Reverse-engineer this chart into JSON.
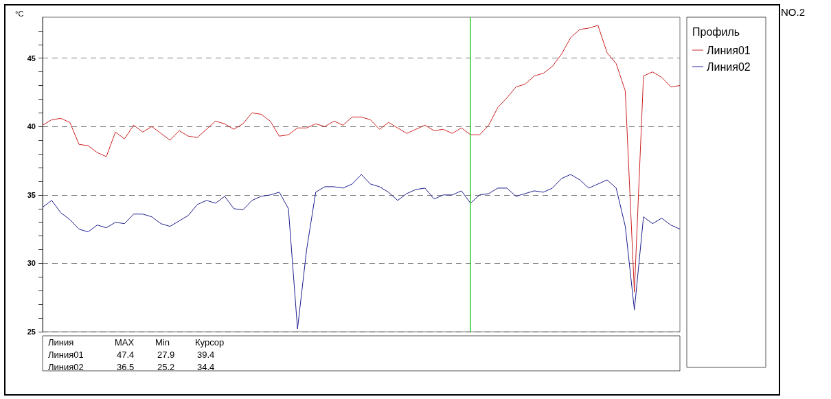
{
  "chart_data": {
    "type": "line",
    "ylabel": "°C",
    "legend_title": "Профиль",
    "legend": "right",
    "marker": "none",
    "line_style": "solid",
    "grid": "y",
    "tick_labels": "y",
    "categories": [
      null,
      null,
      null,
      null,
      null,
      null,
      null,
      null,
      null,
      null,
      null,
      null,
      null,
      null,
      null,
      null,
      null,
      null,
      null,
      null,
      null,
      null,
      null,
      null,
      null,
      null,
      null,
      null,
      null,
      null,
      null,
      null,
      null,
      null,
      null,
      null,
      null,
      null,
      null,
      null,
      null,
      null,
      null,
      null,
      null,
      null,
      null,
      null,
      null,
      null,
      null,
      null,
      null,
      null,
      null,
      null,
      null,
      null,
      null,
      null,
      null,
      null,
      null,
      null,
      null,
      null,
      null,
      null,
      null,
      null,
      null
    ],
    "ylim": [
      25,
      48
    ],
    "yticks": [
      25,
      {
        "value": 26,
        "label": null
      },
      {
        "value": 27,
        "label": null
      },
      {
        "value": 28,
        "label": null
      },
      {
        "value": 29,
        "label": null
      },
      30,
      {
        "value": 31,
        "label": null
      },
      {
        "value": 32,
        "label": null
      },
      {
        "value": 33,
        "label": null
      },
      {
        "value": 34,
        "label": null
      },
      35,
      {
        "value": 36,
        "label": null
      },
      {
        "value": 37,
        "label": null
      },
      {
        "value": 38,
        "label": null
      },
      {
        "value": 39,
        "label": null
      },
      40,
      {
        "value": 41,
        "label": null
      },
      {
        "value": 42,
        "label": null
      },
      {
        "value": 43,
        "label": null
      },
      {
        "value": 44,
        "label": null
      },
      45,
      {
        "value": 46,
        "label": null
      },
      {
        "value": 47,
        "label": null
      }
    ],
    "annotations": [
      "NO.2",
      "Линия",
      "MAX",
      "Min",
      "Курсор",
      "Линия01",
      "47.4",
      "27.9",
      "39.4",
      "Линия02",
      "36.5",
      "25.2",
      "34.4"
    ],
    "series": [
      {
        "name": "Линия01",
        "color": "#cc2020",
        "values": [
          40.1,
          40.5,
          40.6,
          40.3,
          38.7,
          38.6,
          38.1,
          37.8,
          39.6,
          39.1,
          40.1,
          39.6,
          40.0,
          39.5,
          39.0,
          39.7,
          39.3,
          39.2,
          39.8,
          40.4,
          40.2,
          39.8,
          40.2,
          41.0,
          40.9,
          40.4,
          39.3,
          39.4,
          39.9,
          39.9,
          40.2,
          40.0,
          40.4,
          40.1,
          40.7,
          40.7,
          40.5,
          39.8,
          40.3,
          39.9,
          39.5,
          39.8,
          40.1,
          39.7,
          39.8,
          39.5,
          39.9,
          39.4,
          39.4,
          40.1,
          41.4,
          42.1,
          42.9,
          43.1,
          43.7,
          43.9,
          44.4,
          45.3,
          46.5,
          47.1,
          47.2,
          47.4,
          45.4,
          44.6,
          42.6,
          27.9,
          43.7,
          44.0,
          43.6,
          42.9,
          43.0
        ]
      },
      {
        "name": "Линия02",
        "color": "#1c1c8c",
        "values": [
          34.1,
          34.6,
          33.7,
          33.2,
          32.5,
          32.3,
          32.8,
          32.6,
          33.0,
          32.9,
          33.6,
          33.6,
          33.4,
          32.9,
          32.7,
          33.1,
          33.5,
          34.3,
          34.6,
          34.4,
          34.9,
          34.0,
          33.9,
          34.6,
          34.9,
          35.0,
          35.2,
          34.0,
          25.2,
          31.0,
          35.2,
          35.6,
          35.6,
          35.5,
          35.8,
          36.5,
          35.8,
          35.6,
          35.2,
          34.6,
          35.1,
          35.4,
          35.5,
          34.7,
          35.0,
          35.0,
          35.3,
          34.4,
          35.0,
          35.1,
          35.5,
          35.5,
          34.9,
          35.1,
          35.3,
          35.2,
          35.5,
          36.2,
          36.5,
          36.1,
          35.5,
          35.8,
          36.1,
          35.5,
          32.7,
          26.6,
          33.4,
          32.9,
          33.3,
          32.8,
          32.5
        ]
      }
    ]
  }
}
